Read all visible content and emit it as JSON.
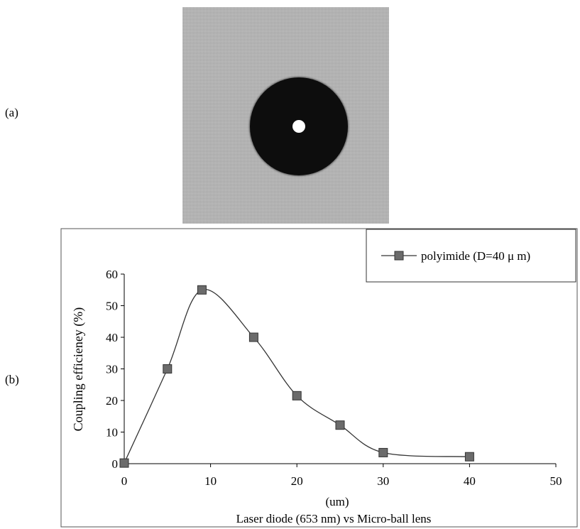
{
  "panels": {
    "a_label": "(a)",
    "b_label": "(b)"
  },
  "chart_data": {
    "type": "line",
    "title": "",
    "xlabel": "Laser diode (653 nm) vs Micro-ball lens",
    "x_unit_label": "(um)",
    "ylabel": "Coupling efficieney (%)",
    "xlim": [
      0,
      50
    ],
    "ylim": [
      0,
      60
    ],
    "x_ticks": [
      0,
      10,
      20,
      30,
      40,
      50
    ],
    "y_ticks": [
      0,
      10,
      20,
      30,
      40,
      50,
      60
    ],
    "grid": false,
    "legend_position": "top-right",
    "series": [
      {
        "name": "polyimide (D=40 μ m)",
        "marker": "square",
        "color": "#6b6b6b",
        "smooth": true,
        "x": [
          0,
          5,
          9,
          15,
          20,
          25,
          30,
          40
        ],
        "y": [
          0.2,
          30,
          55,
          40,
          21.5,
          12.2,
          3.5,
          2.2
        ]
      }
    ]
  }
}
